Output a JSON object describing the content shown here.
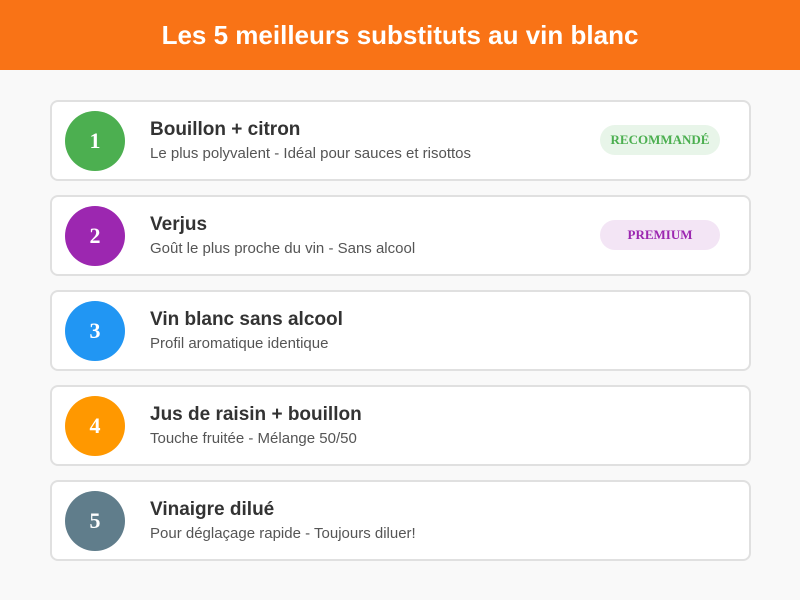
{
  "header": {
    "title": "Les 5 meilleurs substituts au vin blanc"
  },
  "items": [
    {
      "rank": "1",
      "title": "Bouillon + citron",
      "subtitle": "Le plus polyvalent - Idéal pour sauces et risottos",
      "color": "#4caf50",
      "badge": "RECOMMANDÉ",
      "badge_color": "#4caf50",
      "badge_bg": "#e8f5e9"
    },
    {
      "rank": "2",
      "title": "Verjus",
      "subtitle": "Goût le plus proche du vin - Sans alcool",
      "color": "#9c27b0",
      "badge": "PREMIUM",
      "badge_color": "#9c27b0",
      "badge_bg": "#f3e5f5"
    },
    {
      "rank": "3",
      "title": "Vin blanc sans alcool",
      "subtitle": "Profil aromatique identique",
      "color": "#2196f3"
    },
    {
      "rank": "4",
      "title": "Jus de raisin + bouillon",
      "subtitle": "Touche fruitée - Mélange 50/50",
      "color": "#ff9800"
    },
    {
      "rank": "5",
      "title": "Vinaigre dilué",
      "subtitle": "Pour déglaçage rapide - Toujours diluer!",
      "color": "#607d8b"
    }
  ]
}
